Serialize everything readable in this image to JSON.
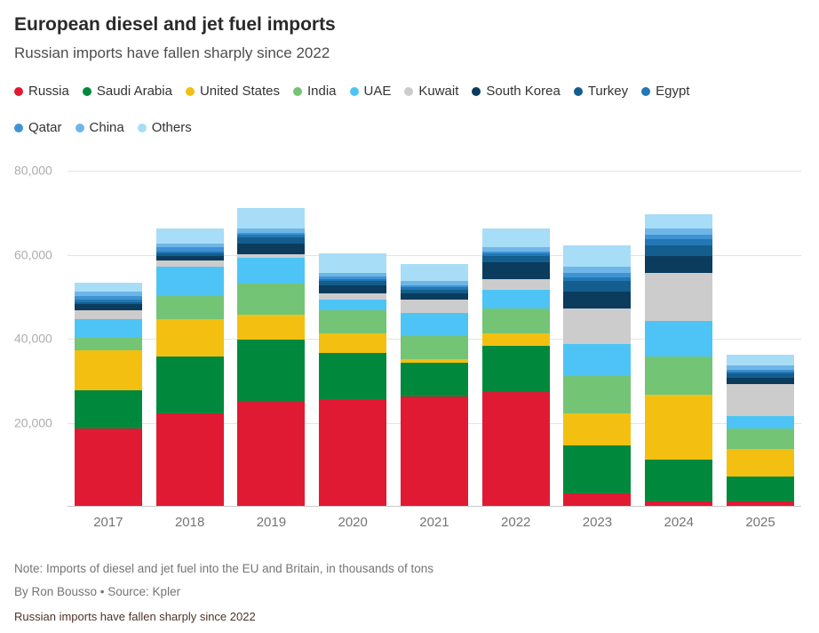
{
  "header": {
    "title": "European diesel and jet fuel imports",
    "subtitle": "Russian imports have fallen sharply since 2022"
  },
  "footer": {
    "note": "Note: Imports of diesel and jet fuel into the EU and Britain, in thousands of tons",
    "byline": "By Ron Bousso • Source: Kpler",
    "caption": "Russian imports have fallen sharply since 2022"
  },
  "chart_data": {
    "type": "bar",
    "stacked": true,
    "title": "European diesel and jet fuel imports",
    "subtitle": "Russian imports have fallen sharply since 2022",
    "xlabel": "",
    "ylabel": "thousands of tons",
    "grid": true,
    "legend_position": "top",
    "legend_row_break_after_index": 8,
    "ylim": [
      0,
      80000
    ],
    "yticks": [
      20000,
      40000,
      60000,
      80000
    ],
    "ytick_labels": [
      "20,000",
      "40,000",
      "60,000",
      "80,000"
    ],
    "categories": [
      "2017",
      "2018",
      "2019",
      "2020",
      "2021",
      "2022",
      "2023",
      "2024",
      "2025"
    ],
    "series": [
      {
        "name": "Russia",
        "color": "#e01a33",
        "values": [
          18500,
          22000,
          25000,
          25500,
          26000,
          27000,
          3000,
          1000,
          1000
        ]
      },
      {
        "name": "Saudi Arabia",
        "color": "#00893d",
        "values": [
          9000,
          13500,
          14500,
          11000,
          8000,
          11000,
          11500,
          10000,
          6000
        ]
      },
      {
        "name": "United States",
        "color": "#f3c011",
        "values": [
          9500,
          9000,
          6000,
          4500,
          1000,
          3000,
          7500,
          15500,
          6500
        ]
      },
      {
        "name": "India",
        "color": "#74c476",
        "values": [
          3000,
          5500,
          7500,
          5500,
          5500,
          6000,
          9000,
          9000,
          5000
        ]
      },
      {
        "name": "UAE",
        "color": "#4dc4f5",
        "values": [
          4500,
          7000,
          6000,
          2500,
          5500,
          4500,
          7500,
          8500,
          3000
        ]
      },
      {
        "name": "Kuwait",
        "color": "#cccccc",
        "values": [
          2000,
          1500,
          1000,
          1500,
          3000,
          2500,
          8500,
          11500,
          7500
        ]
      },
      {
        "name": "South Korea",
        "color": "#0b3c5d",
        "values": [
          1500,
          1000,
          2500,
          2000,
          1500,
          4000,
          4000,
          4000,
          1500
        ]
      },
      {
        "name": "Turkey",
        "color": "#135e8e",
        "values": [
          500,
          500,
          1500,
          1000,
          1000,
          1500,
          2500,
          2500,
          1000
        ]
      },
      {
        "name": "Egypt",
        "color": "#2277b5",
        "values": [
          500,
          500,
          500,
          500,
          500,
          500,
          1000,
          1500,
          500
        ]
      },
      {
        "name": "Qatar",
        "color": "#3f93d2",
        "values": [
          1000,
          1000,
          500,
          500,
          500,
          500,
          1000,
          1000,
          500
        ]
      },
      {
        "name": "China",
        "color": "#6fb6e8",
        "values": [
          1000,
          1000,
          1000,
          1000,
          1000,
          1000,
          1500,
          1500,
          1000
        ]
      },
      {
        "name": "Others",
        "color": "#a7ddf6",
        "values": [
          2000,
          3500,
          5000,
          4500,
          4000,
          4500,
          5000,
          3500,
          2500
        ]
      }
    ]
  }
}
